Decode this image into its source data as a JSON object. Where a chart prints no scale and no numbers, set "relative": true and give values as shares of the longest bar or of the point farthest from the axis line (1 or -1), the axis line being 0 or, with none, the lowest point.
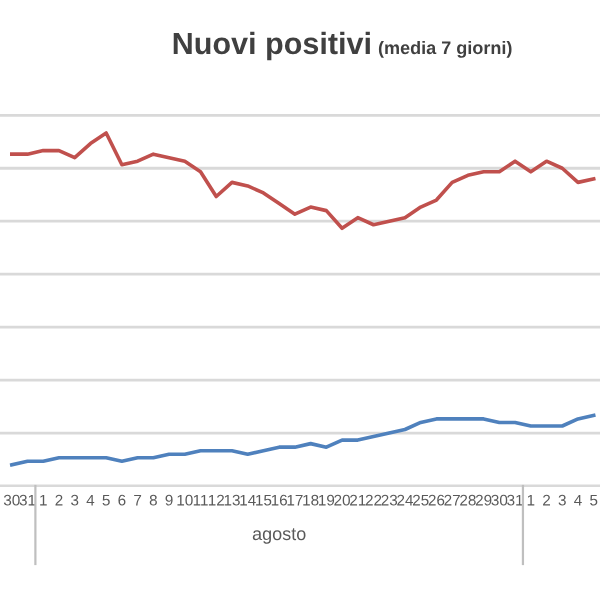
{
  "chart_data": {
    "type": "line",
    "title": "Nuovi positivi",
    "subtitle": "(media 7 giorni)",
    "categories": [
      "30",
      "31",
      "1",
      "2",
      "3",
      "4",
      "5",
      "6",
      "7",
      "8",
      "9",
      "10",
      "11",
      "12",
      "13",
      "14",
      "15",
      "16",
      "17",
      "18",
      "19",
      "20",
      "21",
      "22",
      "23",
      "24",
      "25",
      "26",
      "27",
      "28",
      "29",
      "30",
      "31",
      "1",
      "2",
      "3",
      "4",
      "5"
    ],
    "annotations": [
      "agosto"
    ],
    "relative": true,
    "grid": "y",
    "marker": "none",
    "line_style": "solid",
    "series": [
      {
        "color": "#c0504d",
        "values": [
          0.94,
          0.94,
          0.95,
          0.95,
          0.93,
          0.97,
          1.0,
          0.91,
          0.92,
          0.94,
          0.93,
          0.92,
          0.89,
          0.82,
          0.86,
          0.85,
          0.83,
          0.8,
          0.77,
          0.79,
          0.78,
          0.73,
          0.76,
          0.74,
          0.75,
          0.76,
          0.79,
          0.81,
          0.86,
          0.88,
          0.89,
          0.89,
          0.92,
          0.89,
          0.92,
          0.9,
          0.86,
          0.87
        ]
      },
      {
        "color": "#4f81bd",
        "values": [
          0.06,
          0.07,
          0.07,
          0.08,
          0.08,
          0.08,
          0.08,
          0.07,
          0.08,
          0.08,
          0.09,
          0.09,
          0.1,
          0.1,
          0.1,
          0.09,
          0.1,
          0.11,
          0.11,
          0.12,
          0.11,
          0.13,
          0.13,
          0.14,
          0.15,
          0.16,
          0.18,
          0.19,
          0.19,
          0.19,
          0.19,
          0.18,
          0.18,
          0.17,
          0.17,
          0.17,
          0.19,
          0.2
        ]
      }
    ]
  }
}
